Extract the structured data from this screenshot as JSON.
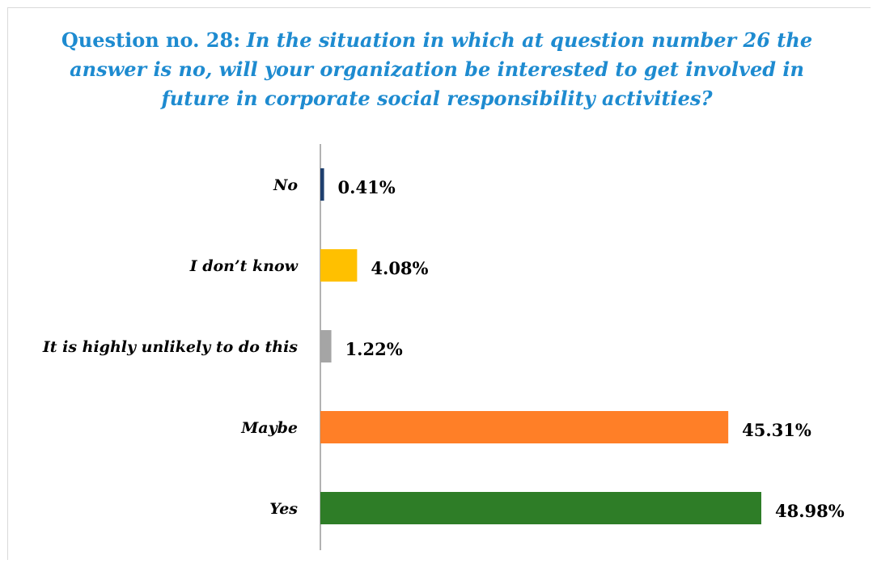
{
  "chart_data": {
    "type": "bar",
    "orientation": "horizontal",
    "title_prefix": "Question no. 28:",
    "title": "In the situation in which at question number 26 the answer is no, will your organization be interested to get involved in future in corporate social responsibility activities?",
    "categories": [
      "No",
      "I don’t know",
      "It is highly unlikely to do this",
      "Maybe",
      "Yes"
    ],
    "values": [
      0.41,
      4.08,
      1.22,
      45.31,
      48.98
    ],
    "value_labels": [
      "0.41%",
      "4.08%",
      "1.22%",
      "45.31%",
      "48.98%"
    ],
    "colors": [
      "#1f3f6e",
      "#ffc000",
      "#a5a5a5",
      "#ff7f27",
      "#2e7d27"
    ],
    "xlabel": "",
    "ylabel": "",
    "xlim": [
      0,
      50
    ],
    "grid": false,
    "legend": "none"
  }
}
